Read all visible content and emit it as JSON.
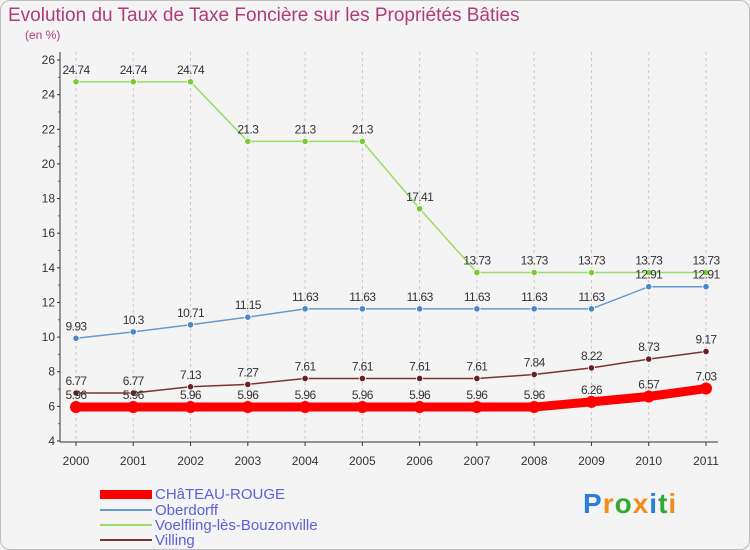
{
  "chart_data": {
    "type": "line",
    "title": "Evolution du Taux de Taxe Foncière sur les Propriétés Bâties",
    "subtitle": "(en %)",
    "x": [
      "2000",
      "2001",
      "2002",
      "2003",
      "2004",
      "2005",
      "2006",
      "2007",
      "2008",
      "2009",
      "2010",
      "2011"
    ],
    "ylim": [
      4,
      26
    ],
    "yticks": [
      "4",
      "6",
      "8",
      "10",
      "12",
      "14",
      "16",
      "18",
      "20",
      "22",
      "24",
      "26"
    ],
    "grid": "vertical dashed",
    "series": [
      {
        "name": "CHâTEAU-ROUGE",
        "color": "#ff0000",
        "marker": "#ff0000",
        "values": [
          5.96,
          5.96,
          5.96,
          5.96,
          5.96,
          5.96,
          5.96,
          5.96,
          5.96,
          6.26,
          6.57,
          7.03
        ],
        "labels": [
          "5.96",
          "5.96",
          "5.96",
          "5.96",
          "5.96",
          "5.96",
          "5.96",
          "5.96",
          "5.96",
          "6.26",
          "6.57",
          "7.03"
        ]
      },
      {
        "name": "Oberdorff",
        "color": "#6699cc",
        "marker": "#4a86c8",
        "values": [
          9.93,
          10.3,
          10.71,
          11.15,
          11.63,
          11.63,
          11.63,
          11.63,
          11.63,
          11.63,
          12.91,
          12.91
        ],
        "labels": [
          "9.93",
          "10.3",
          "10.71",
          "11.15",
          "11.63",
          "11.63",
          "11.63",
          "11.63",
          "11.63",
          "11.63",
          "12.91",
          "12.91"
        ]
      },
      {
        "name": "Voelfling-lès-Bouzonville",
        "color": "#99dd66",
        "marker": "#77cc33",
        "values": [
          24.74,
          24.74,
          24.74,
          21.3,
          21.3,
          21.3,
          17.41,
          13.73,
          13.73,
          13.73,
          13.73,
          13.73
        ],
        "labels": [
          "24.74",
          "24.74",
          "24.74",
          "21.3",
          "21.3",
          "21.3",
          "17.41",
          "13.73",
          "13.73",
          "13.73",
          "13.73",
          "13.73"
        ]
      },
      {
        "name": "Villing",
        "color": "#7a3333",
        "marker": "#6b1f1f",
        "values": [
          6.77,
          6.77,
          7.13,
          7.27,
          7.61,
          7.61,
          7.61,
          7.61,
          7.84,
          8.22,
          8.73,
          9.17
        ],
        "labels": [
          "6.77",
          "6.77",
          "7.13",
          "7.27",
          "7.61",
          "7.61",
          "7.61",
          "7.61",
          "7.84",
          "8.22",
          "8.73",
          "9.17"
        ]
      }
    ]
  },
  "brand": {
    "letters": [
      "P",
      "r",
      "o",
      "x",
      "i",
      "t",
      "i"
    ],
    "colors": [
      "#2a7fd4",
      "#f28c1a",
      "#33aa33",
      "#f28c1a",
      "#2a7fd4",
      "#33aa33",
      "#f28c1a"
    ]
  }
}
